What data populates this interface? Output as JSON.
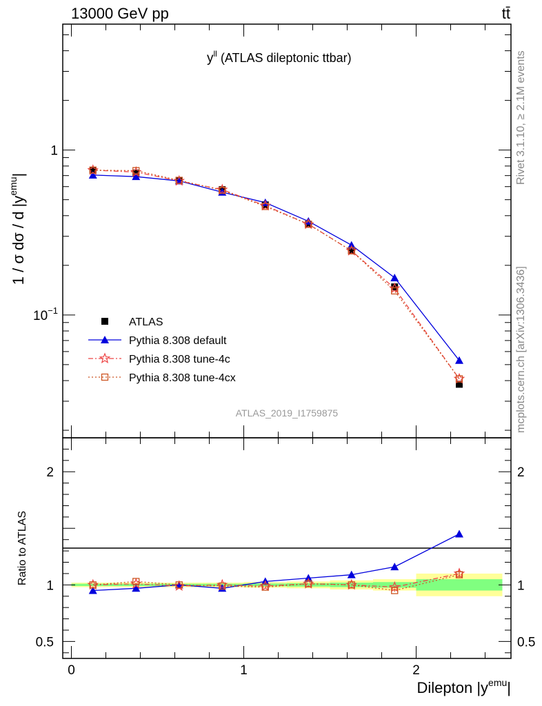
{
  "header": {
    "left": "13000 GeV pp",
    "right": "tt̄"
  },
  "side_labels": {
    "version": "Rivet 3.1.10, ≥ 2.1M events",
    "source": "mcplots.cern.ch [arXiv:1306.3436]"
  },
  "chart_data": [
    {
      "type": "line",
      "panel": "main",
      "title_main": "y",
      "title_sup": "ll",
      "title_rest": " (ATLAS dileptonic ttbar)",
      "watermark": "ATLAS_2019_I1759875",
      "ylabel": "1 / σ  dσ / d |y",
      "ylabel_sup": "emu",
      "ylabel_end": "|",
      "yscale": "log",
      "ylim": [
        0.018,
        5.8
      ],
      "xlim": [
        -0.05,
        2.55
      ],
      "yticks": [
        {
          "v": 1,
          "label": "1"
        },
        {
          "v": 0.1,
          "label": "10",
          "sup": "−1"
        }
      ],
      "legend_position": "bottom-left",
      "series": [
        {
          "name": "ATLAS",
          "marker": "square",
          "color": "#000000",
          "line": "none",
          "x": [
            0.125,
            0.375,
            0.625,
            0.875,
            1.125,
            1.375,
            1.625,
            1.875,
            2.25
          ],
          "y": [
            0.755,
            0.725,
            0.655,
            0.575,
            0.465,
            0.355,
            0.245,
            0.148,
            0.038
          ]
        },
        {
          "name": "Pythia 8.308 default",
          "marker": "triangle",
          "color": "#0000dd",
          "line": "solid",
          "x": [
            0.125,
            0.375,
            0.625,
            0.875,
            1.125,
            1.375,
            1.625,
            1.875,
            2.25
          ],
          "y": [
            0.705,
            0.69,
            0.65,
            0.555,
            0.48,
            0.37,
            0.265,
            0.168,
            0.053
          ]
        },
        {
          "name": "Pythia 8.308 tune-4c",
          "marker": "star",
          "color": "#ee4444",
          "line": "dashdot",
          "x": [
            0.125,
            0.375,
            0.625,
            0.875,
            1.125,
            1.375,
            1.625,
            1.875,
            2.25
          ],
          "y": [
            0.755,
            0.735,
            0.65,
            0.575,
            0.46,
            0.355,
            0.245,
            0.145,
            0.041
          ]
        },
        {
          "name": "Pythia 8.308 tune-4cx",
          "marker": "open-square",
          "color": "#cc5522",
          "line": "dotted",
          "x": [
            0.125,
            0.375,
            0.625,
            0.875,
            1.125,
            1.375,
            1.625,
            1.875,
            2.25
          ],
          "y": [
            0.755,
            0.75,
            0.655,
            0.57,
            0.455,
            0.355,
            0.245,
            0.14,
            0.041
          ]
        }
      ]
    },
    {
      "type": "line",
      "panel": "ratio",
      "ylabel": "Ratio to ATLAS",
      "xlabel": "Dilepton |y",
      "xlabel_sup": "emu",
      "xlabel_end": "|",
      "yscale": "linear",
      "ylim": [
        0.35,
        2.3
      ],
      "xlim": [
        -0.05,
        2.55
      ],
      "yticks": [
        {
          "v": 2,
          "label": "2"
        },
        {
          "v": 1,
          "label": "1"
        },
        {
          "v": 0.5,
          "label": "0.5"
        }
      ],
      "xticks": [
        {
          "v": 0,
          "label": "0"
        },
        {
          "v": 1,
          "label": "1"
        },
        {
          "v": 2,
          "label": "2"
        }
      ],
      "band_color_outer": "#ffff99",
      "band_color_inner": "#80ff80",
      "bands": [
        {
          "x0": 0.0,
          "x1": 0.25,
          "outer": 0.02,
          "inner": 0.01
        },
        {
          "x0": 0.25,
          "x1": 0.5,
          "outer": 0.02,
          "inner": 0.01
        },
        {
          "x0": 0.5,
          "x1": 0.75,
          "outer": 0.02,
          "inner": 0.01
        },
        {
          "x0": 0.75,
          "x1": 1.0,
          "outer": 0.02,
          "inner": 0.01
        },
        {
          "x0": 1.0,
          "x1": 1.25,
          "outer": 0.025,
          "inner": 0.012
        },
        {
          "x0": 1.25,
          "x1": 1.5,
          "outer": 0.03,
          "inner": 0.015
        },
        {
          "x0": 1.5,
          "x1": 1.75,
          "outer": 0.04,
          "inner": 0.02
        },
        {
          "x0": 1.75,
          "x1": 2.0,
          "outer": 0.05,
          "inner": 0.025
        },
        {
          "x0": 2.0,
          "x1": 2.5,
          "outer": 0.1,
          "inner": 0.05
        }
      ],
      "series": [
        {
          "name": "Pythia 8.308 default",
          "marker": "triangle",
          "color": "#0000dd",
          "line": "solid",
          "x": [
            0.125,
            0.375,
            0.625,
            0.875,
            1.125,
            1.375,
            1.625,
            1.875,
            2.25
          ],
          "y": [
            0.95,
            0.97,
            1.0,
            0.97,
            1.03,
            1.06,
            1.09,
            1.16,
            1.45
          ],
          "err": [
            0,
            0,
            0,
            0,
            0,
            0,
            0,
            0.02,
            0.03
          ]
        },
        {
          "name": "Pythia 8.308 tune-4c",
          "marker": "star",
          "color": "#ee4444",
          "line": "dashdot",
          "x": [
            0.125,
            0.375,
            0.625,
            0.875,
            1.125,
            1.375,
            1.625,
            1.875,
            2.25
          ],
          "y": [
            1.0,
            1.01,
            0.99,
            1.0,
            0.99,
            1.01,
            1.0,
            0.98,
            1.1
          ],
          "err": [
            0,
            0,
            0,
            0,
            0,
            0,
            0,
            0.01,
            0.03
          ]
        },
        {
          "name": "Pythia 8.308 tune-4cx",
          "marker": "open-square",
          "color": "#cc5522",
          "line": "dotted",
          "x": [
            0.125,
            0.375,
            0.625,
            0.875,
            1.125,
            1.375,
            1.625,
            1.875,
            2.25
          ],
          "y": [
            1.0,
            1.03,
            1.0,
            0.99,
            0.98,
            1.01,
            1.0,
            0.95,
            1.09
          ],
          "err": [
            0,
            0,
            0,
            0,
            0,
            0,
            0,
            0.01,
            0.03
          ]
        }
      ]
    }
  ]
}
